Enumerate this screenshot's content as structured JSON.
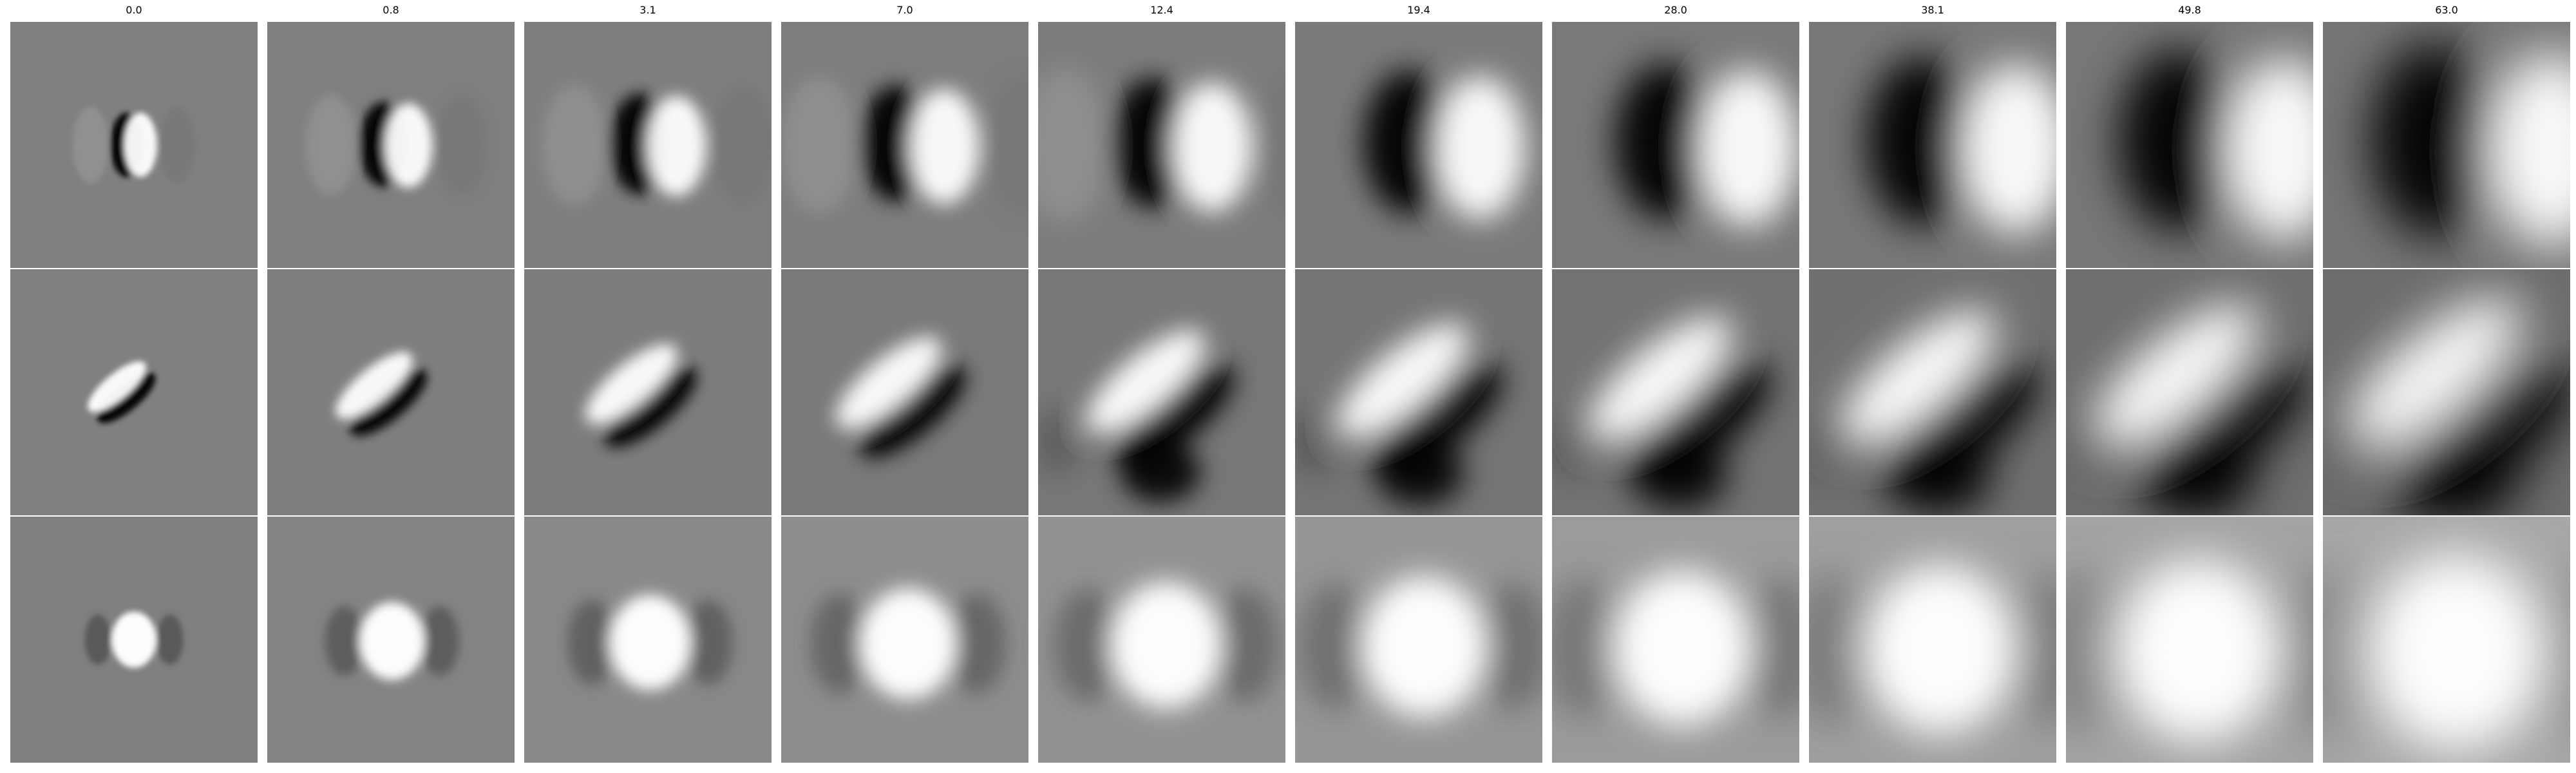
{
  "figure": {
    "column_labels": [
      "0.0",
      "0.8",
      "3.1",
      "7.0",
      "12.4",
      "19.4",
      "28.0",
      "38.1",
      "49.8",
      "63.0"
    ],
    "rows": 3,
    "background_color": "#808080",
    "dark_color": "#000000",
    "light_color": "#ffffff",
    "row_patterns": [
      {
        "name": "horizontal-dipole",
        "description_key": "dark-left-light-right"
      },
      {
        "name": "diagonal-dipole",
        "description_key": "dark-lower-left-light-upper-right"
      },
      {
        "name": "central-blob",
        "description_key": "bright-center-dark-flanks"
      }
    ]
  }
}
